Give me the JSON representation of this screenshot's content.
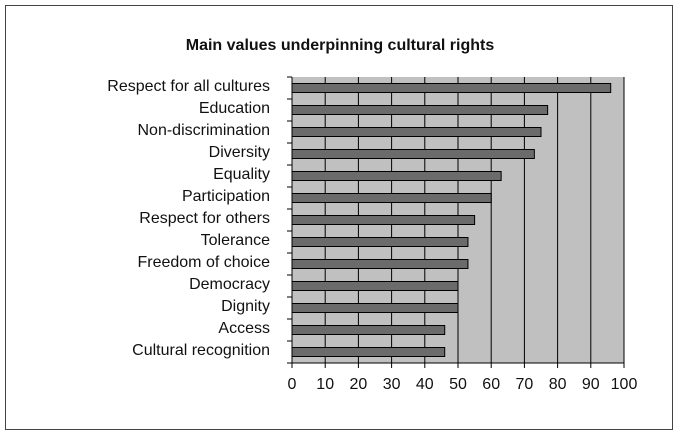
{
  "chart_data": {
    "type": "hbar",
    "title": "Main values underpinning cultural rights",
    "categories": [
      "Respect for all cultures",
      "Education",
      "Non-discrimination",
      "Diversity",
      "Equality",
      "Participation",
      "Respect for others",
      "Tolerance",
      "Freedom of choice",
      "Democracy",
      "Dignity",
      "Access",
      "Cultural recognition"
    ],
    "values": [
      96,
      77,
      75,
      73,
      63,
      60,
      55,
      53,
      53,
      50,
      50,
      46,
      46
    ],
    "color": "#6b6b6b",
    "xlim": [
      0,
      100
    ],
    "xticks": [
      0,
      10,
      20,
      30,
      40,
      50,
      60,
      70,
      80,
      90,
      100
    ],
    "grid": true
  }
}
